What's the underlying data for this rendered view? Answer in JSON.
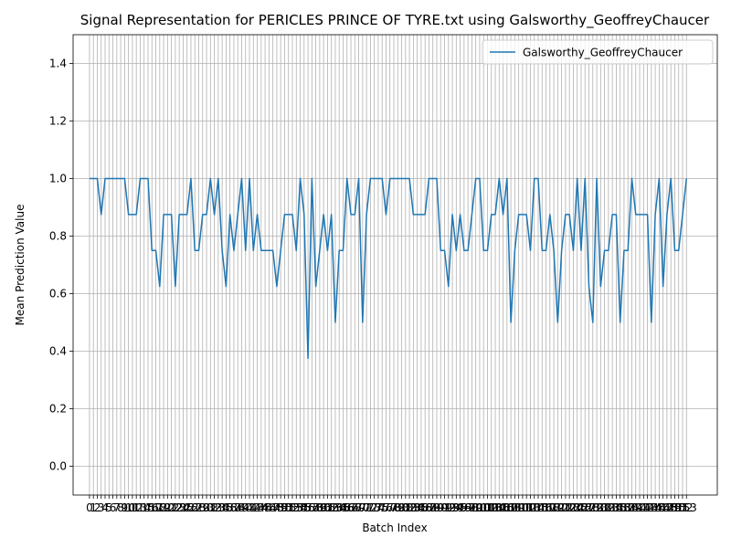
{
  "chart_data": {
    "type": "line",
    "title": "Signal Representation for PERICLES PRINCE OF TYRE.txt using Galsworthy_GeoffreyChaucer",
    "x_label": "Batch Index",
    "y_label": "Mean Prediction Value",
    "x": [
      0,
      1,
      2,
      3,
      4,
      5,
      6,
      7,
      8,
      9,
      10,
      11,
      12,
      13,
      14,
      15,
      16,
      17,
      18,
      19,
      20,
      21,
      22,
      23,
      24,
      25,
      26,
      27,
      28,
      29,
      30,
      31,
      32,
      33,
      34,
      35,
      36,
      37,
      38,
      39,
      40,
      41,
      42,
      43,
      44,
      45,
      46,
      47,
      48,
      49,
      50,
      51,
      52,
      53,
      54,
      55,
      56,
      57,
      58,
      59,
      60,
      61,
      62,
      63,
      64,
      65,
      66,
      67,
      68,
      69,
      70,
      71,
      72,
      73,
      74,
      75,
      76,
      77,
      78,
      79,
      80,
      81,
      82,
      83,
      84,
      85,
      86,
      87,
      88,
      89,
      90,
      91,
      92,
      93,
      94,
      95,
      96,
      97,
      98,
      99,
      100,
      101,
      102,
      103,
      104,
      105,
      106,
      107,
      108,
      109,
      110,
      111,
      112,
      113,
      114,
      115,
      116,
      117,
      118,
      119,
      120,
      121,
      122,
      123,
      124,
      125,
      126,
      127,
      128,
      129,
      130,
      131,
      132,
      133,
      134,
      135,
      136,
      137,
      138,
      139,
      140,
      141,
      142,
      143,
      144,
      145,
      146,
      147,
      148,
      149,
      150,
      151,
      152,
      153
    ],
    "series": [
      {
        "name": "Galsworthy_GeoffreyChaucer",
        "color": "#1f77b4",
        "values": [
          1,
          1,
          1,
          0.875,
          1,
          1,
          1,
          1,
          1,
          1,
          0.875,
          0.875,
          0.875,
          1,
          1,
          1,
          0.75,
          0.75,
          0.625,
          0.875,
          0.875,
          0.875,
          0.625,
          0.875,
          0.875,
          0.875,
          1,
          0.75,
          0.75,
          0.875,
          0.875,
          1,
          0.875,
          1,
          0.75,
          0.625,
          0.875,
          0.75,
          0.875,
          1,
          0.75,
          1,
          0.75,
          0.875,
          0.75,
          0.75,
          0.75,
          0.75,
          0.625,
          0.75,
          0.875,
          0.875,
          0.875,
          0.75,
          1,
          0.875,
          0.375,
          1,
          0.625,
          0.75,
          0.875,
          0.75,
          0.875,
          0.5,
          0.75,
          0.75,
          1,
          0.875,
          0.875,
          1,
          0.5,
          0.875,
          1,
          1,
          1,
          1,
          0.875,
          1,
          1,
          1,
          1,
          1,
          1,
          0.875,
          0.875,
          0.875,
          0.875,
          1,
          1,
          1,
          0.75,
          0.75,
          0.625,
          0.875,
          0.75,
          0.875,
          0.75,
          0.75,
          0.875,
          1,
          1,
          0.75,
          0.75,
          0.875,
          0.875,
          1,
          0.875,
          1,
          0.5,
          0.75,
          0.875,
          0.875,
          0.875,
          0.75,
          1,
          1,
          0.75,
          0.75,
          0.875,
          0.75,
          0.5,
          0.75,
          0.875,
          0.875,
          0.75,
          1,
          0.75,
          1,
          0.625,
          0.5,
          1,
          0.625,
          0.75,
          0.75,
          0.875,
          0.875,
          0.5,
          0.75,
          0.75,
          1,
          0.875,
          0.875,
          0.875,
          0.875,
          0.5,
          0.875,
          1,
          0.625,
          0.875,
          1,
          0.75,
          0.75,
          0.875,
          1
        ]
      }
    ],
    "xlim": [
      -4.2,
      160.9
    ],
    "xticks": [
      0,
      1,
      2,
      3,
      4,
      5,
      6,
      7,
      8,
      9,
      10,
      11,
      12,
      13,
      14,
      15,
      16,
      17,
      18,
      19,
      20,
      21,
      22,
      23,
      24,
      25,
      26,
      27,
      28,
      29,
      30,
      31,
      32,
      33,
      34,
      35,
      36,
      37,
      38,
      39,
      40,
      41,
      42,
      43,
      44,
      45,
      46,
      47,
      48,
      49,
      50,
      51,
      52,
      53,
      54,
      55,
      56,
      57,
      58,
      59,
      60,
      61,
      62,
      63,
      64,
      65,
      66,
      67,
      68,
      69,
      70,
      71,
      72,
      73,
      74,
      75,
      76,
      77,
      78,
      79,
      80,
      81,
      82,
      83,
      84,
      85,
      86,
      87,
      88,
      89,
      90,
      91,
      92,
      93,
      94,
      95,
      96,
      97,
      98,
      99,
      100,
      101,
      102,
      103,
      104,
      105,
      106,
      107,
      108,
      109,
      110,
      111,
      112,
      113,
      114,
      115,
      116,
      117,
      118,
      119,
      120,
      121,
      122,
      123,
      124,
      125,
      126,
      127,
      128,
      129,
      130,
      131,
      132,
      133,
      134,
      135,
      136,
      137,
      138,
      139,
      140,
      141,
      142,
      143,
      144,
      145,
      146,
      147,
      148,
      149,
      150,
      151,
      152,
      153
    ],
    "ylim": [
      -0.1,
      1.5
    ],
    "yticks": [
      {
        "value": 0,
        "label": "0.0"
      },
      0.2,
      0.4,
      0.6,
      0.8,
      {
        "value": 1,
        "label": "1.0"
      },
      1.2,
      1.4
    ],
    "grid": true,
    "legend": "upper right"
  }
}
